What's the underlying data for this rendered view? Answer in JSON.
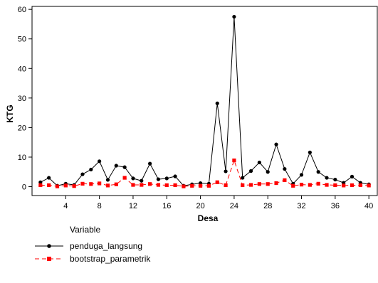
{
  "chart_data": {
    "type": "line",
    "xlabel": "Desa",
    "ylabel": "KTG",
    "xlim": [
      0,
      41
    ],
    "ylim": [
      -3,
      61
    ],
    "xticks": [
      4,
      8,
      12,
      16,
      20,
      24,
      28,
      32,
      36,
      40
    ],
    "yticks": [
      0,
      10,
      20,
      30,
      40,
      50,
      60
    ],
    "grid": false,
    "legend": {
      "title": "Variable",
      "position": "bottom-left"
    },
    "x": [
      1,
      2,
      3,
      4,
      5,
      6,
      7,
      8,
      9,
      10,
      11,
      12,
      13,
      14,
      15,
      16,
      17,
      18,
      19,
      20,
      21,
      22,
      23,
      24,
      25,
      26,
      27,
      28,
      29,
      30,
      31,
      32,
      33,
      34,
      35,
      36,
      37,
      38,
      39,
      40
    ],
    "series": [
      {
        "name": "penduga_langsung",
        "color": "#000000",
        "line_style": "solid",
        "marker": "circle",
        "values": [
          1.5,
          3.0,
          0.3,
          1.0,
          0.6,
          4.2,
          5.8,
          8.6,
          2.3,
          7.1,
          6.6,
          2.8,
          2.0,
          7.8,
          2.5,
          2.8,
          3.5,
          0.3,
          0.8,
          1.2,
          1.0,
          28.2,
          5.2,
          57.5,
          3.0,
          5.3,
          8.2,
          5.0,
          14.3,
          6.0,
          1.0,
          4.0,
          11.6,
          5.0,
          3.0,
          2.4,
          1.3,
          3.4,
          1.3,
          0.8
        ]
      },
      {
        "name": "bootstrap_parametrik",
        "color": "#ff0000",
        "line_style": "dashed",
        "marker": "square",
        "values": [
          0.5,
          0.5,
          0.1,
          0.4,
          0.2,
          1.0,
          0.9,
          1.1,
          0.4,
          0.8,
          3.0,
          0.6,
          0.6,
          0.9,
          0.6,
          0.5,
          0.5,
          0.1,
          0.3,
          0.3,
          0.3,
          1.5,
          0.5,
          8.9,
          0.5,
          0.6,
          0.9,
          0.9,
          1.2,
          2.2,
          0.3,
          0.7,
          0.6,
          1.0,
          0.6,
          0.5,
          0.4,
          0.5,
          0.5,
          0.4
        ]
      }
    ]
  }
}
